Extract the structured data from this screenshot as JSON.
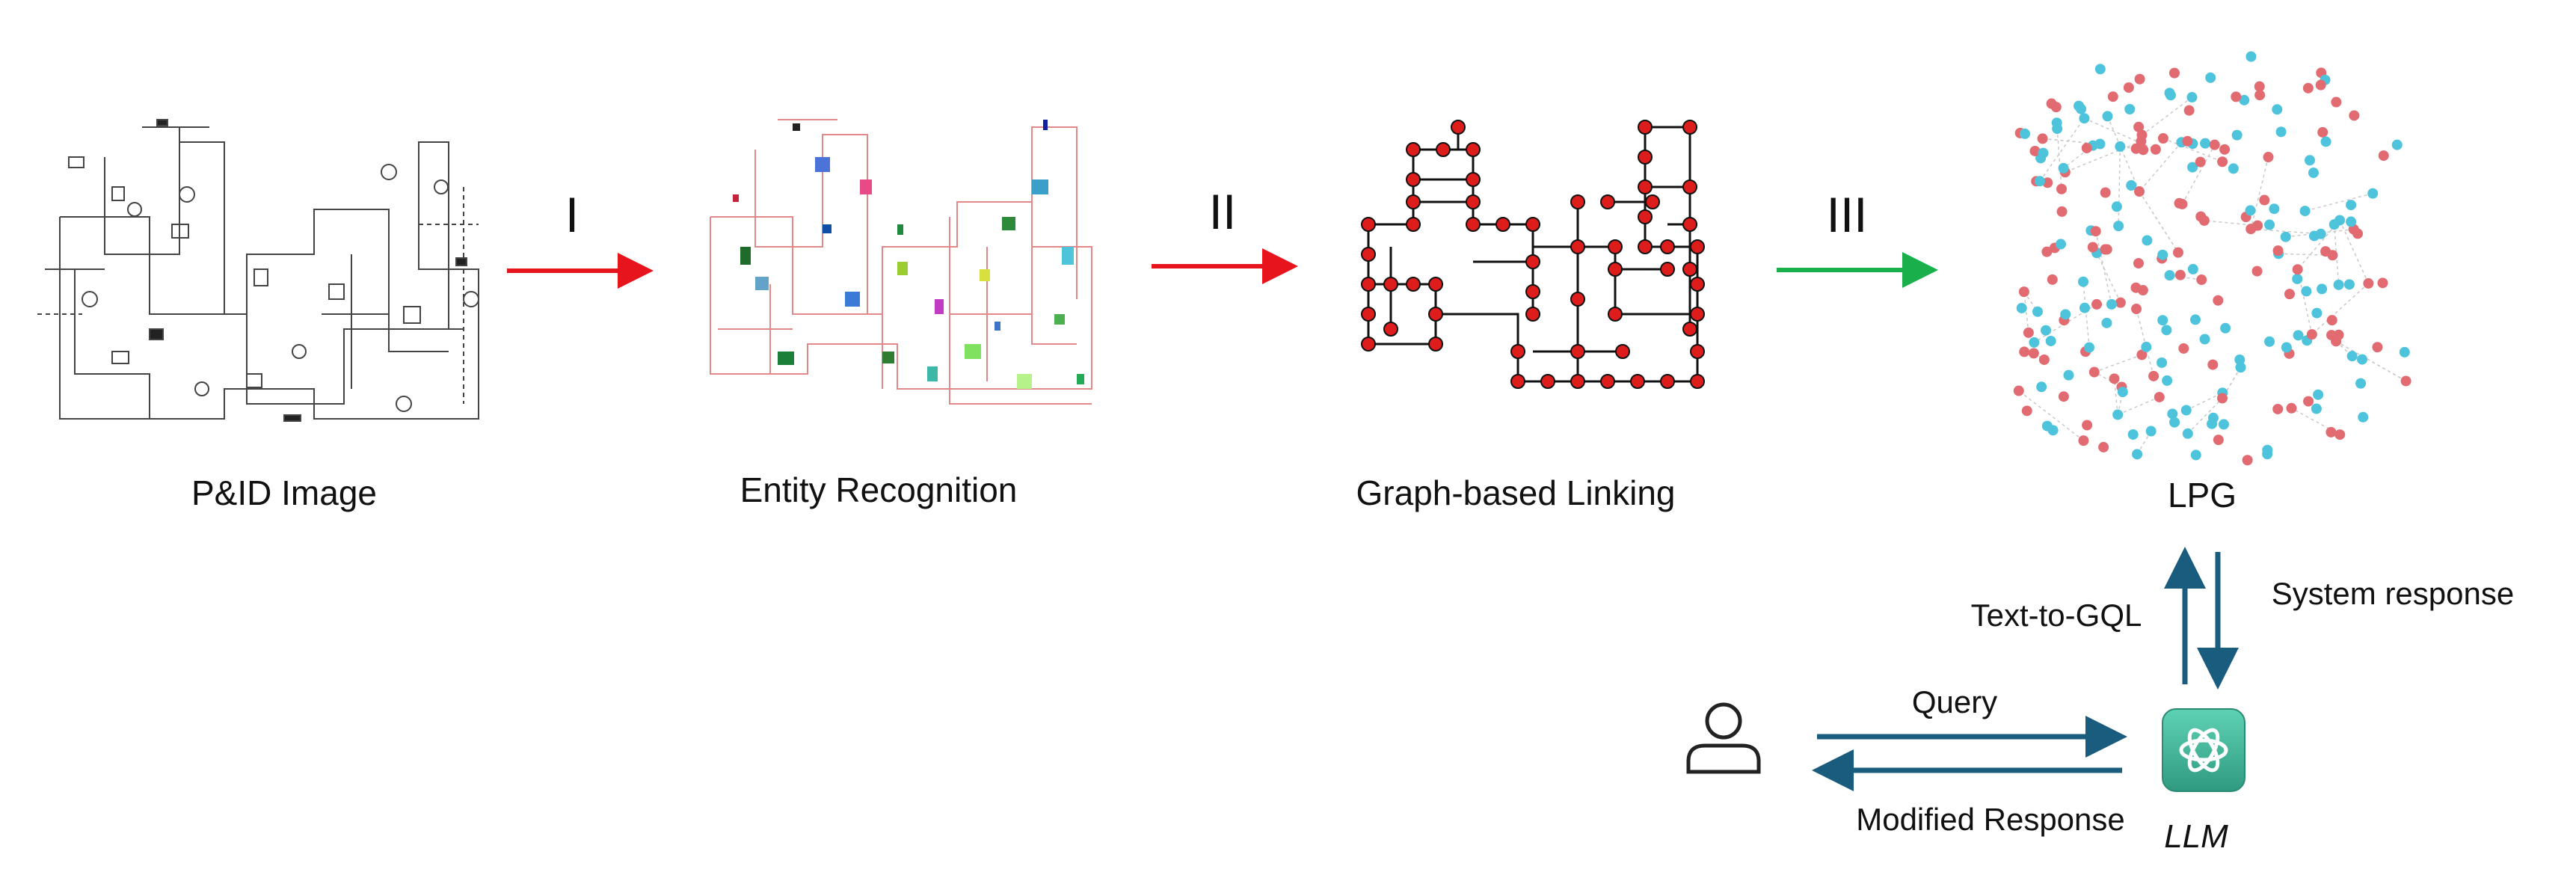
{
  "stages": {
    "pid_image": "P&ID Image",
    "entity_recognition": "Entity Recognition",
    "graph_linking": "Graph-based Linking",
    "lpg": "LPG"
  },
  "steps": {
    "one": "I",
    "two": "II",
    "three": "III"
  },
  "flows": {
    "text_to_gql": "Text-to-GQL",
    "system_response": "System response",
    "query": "Query",
    "modified_response": "Modified Response"
  },
  "agent": {
    "llm": "LLM",
    "icon": "openai-logo-icon",
    "accent": "#3aa890"
  },
  "user": {
    "icon": "user-icon"
  },
  "colors": {
    "red_arrow": "#e8141b",
    "green_arrow": "#19b04c",
    "blue_arrow": "#1a5c7e",
    "lpg_red": "#e26b72",
    "lpg_cyan": "#4ec3dc",
    "graph_node": "#dd1c1c"
  }
}
